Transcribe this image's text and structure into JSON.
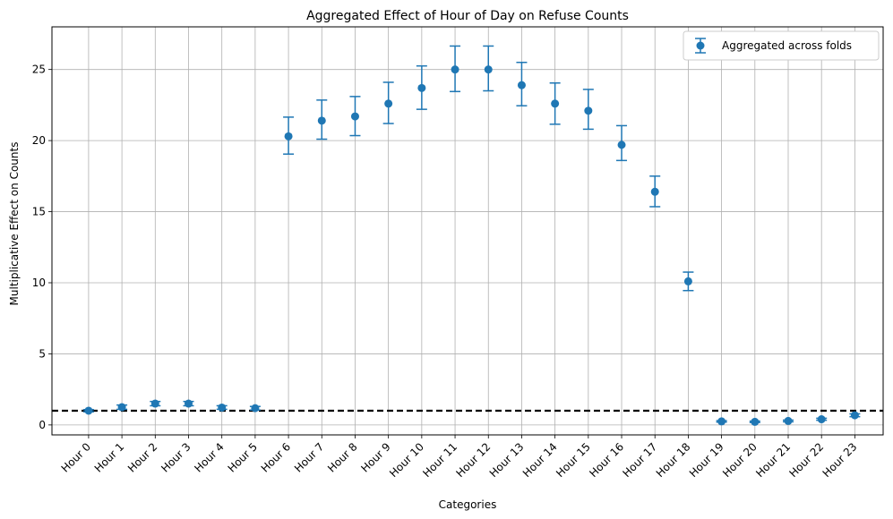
{
  "chart_data": {
    "type": "scatter",
    "title": "Aggregated Effect of Hour of Day on Refuse Counts",
    "xlabel": "Categories",
    "ylabel": "Multiplicative Effect on Counts",
    "categories": [
      "Hour 0",
      "Hour 1",
      "Hour 2",
      "Hour 3",
      "Hour 4",
      "Hour 5",
      "Hour 6",
      "Hour 7",
      "Hour 8",
      "Hour 9",
      "Hour 10",
      "Hour 11",
      "Hour 12",
      "Hour 13",
      "Hour 14",
      "Hour 15",
      "Hour 16",
      "Hour 17",
      "Hour 18",
      "Hour 19",
      "Hour 20",
      "Hour 21",
      "Hour 22",
      "Hour 23"
    ],
    "series": [
      {
        "name": "Aggregated across folds",
        "values": [
          1.0,
          1.25,
          1.5,
          1.5,
          1.22,
          1.18,
          20.3,
          21.4,
          21.7,
          22.6,
          23.7,
          25.0,
          25.0,
          23.9,
          22.6,
          22.1,
          19.7,
          16.4,
          10.1,
          0.25,
          0.22,
          0.28,
          0.4,
          0.68
        ],
        "lower": [
          0.92,
          1.1,
          1.35,
          1.35,
          1.1,
          1.05,
          19.05,
          20.1,
          20.35,
          21.2,
          22.2,
          23.45,
          23.5,
          22.45,
          21.15,
          20.8,
          18.6,
          15.35,
          9.45,
          0.2,
          0.17,
          0.22,
          0.33,
          0.58
        ],
        "upper": [
          1.08,
          1.4,
          1.65,
          1.65,
          1.35,
          1.3,
          21.65,
          22.85,
          23.1,
          24.1,
          25.25,
          26.65,
          26.65,
          25.5,
          24.05,
          23.6,
          21.05,
          17.5,
          10.75,
          0.3,
          0.27,
          0.34,
          0.47,
          0.78
        ],
        "color": "#1f77b4"
      }
    ],
    "reference_line": {
      "value": 1,
      "style": "dashed",
      "color": "#000000"
    },
    "ylim": [
      -0.7,
      28.0
    ],
    "yticks": [
      0,
      5,
      10,
      15,
      20,
      25
    ],
    "grid": true,
    "legend_position": "top-right"
  }
}
